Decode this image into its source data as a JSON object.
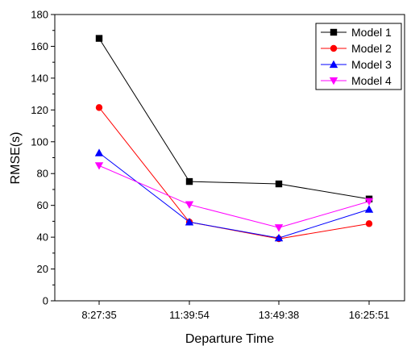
{
  "chart_data": {
    "type": "line",
    "title": "",
    "xlabel": "Departure Time",
    "ylabel": "RMSE(s)",
    "categories": [
      "8:27:35",
      "11:39:54",
      "13:49:38",
      "16:25:51"
    ],
    "ylim": [
      0,
      180
    ],
    "yticks": [
      0,
      20,
      40,
      60,
      80,
      100,
      120,
      140,
      160,
      180
    ],
    "grid": false,
    "legend_position": "top-right",
    "series": [
      {
        "name": "Model 1",
        "color": "#000000",
        "marker": "square",
        "values": [
          165,
          75,
          73.5,
          64
        ]
      },
      {
        "name": "Model 2",
        "color": "#ff0000",
        "marker": "circle",
        "values": [
          121.5,
          49.5,
          39,
          48.5
        ]
      },
      {
        "name": "Model 3",
        "color": "#0000ff",
        "marker": "triangle-up",
        "values": [
          93,
          49.5,
          39.5,
          57.5
        ]
      },
      {
        "name": "Model 4",
        "color": "#ff00ff",
        "marker": "triangle-down",
        "values": [
          85,
          60.5,
          46,
          62.5
        ]
      }
    ]
  }
}
